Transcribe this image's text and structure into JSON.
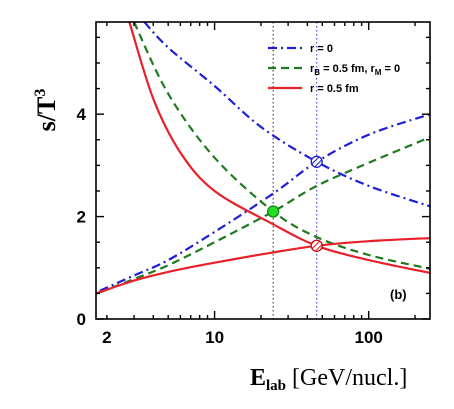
{
  "chart_data": {
    "type": "line",
    "x_scale": "log",
    "xlim": [
      1.7,
      250
    ],
    "ylim": [
      0,
      5.8
    ],
    "x_ticks": [
      "2",
      "10",
      "100"
    ],
    "y_ticks": [
      "0",
      "2",
      "4"
    ],
    "xlabel_main": "E",
    "xlabel_sub": "lab",
    "xlabel_unit": " [GeV/nucl.]",
    "ylabel_main": "s/T",
    "ylabel_sup": "3",
    "panel_label": "(b)",
    "grid": false,
    "legend_position": "top-right",
    "legend": [
      {
        "label_parts": [
          "r = 0"
        ],
        "sub": [],
        "style": "dash-dot",
        "color": "#1f1fd6"
      },
      {
        "label_parts": [
          "r",
          "B",
          " = 0.5 fm, r",
          "M",
          " = 0"
        ],
        "style": "dashed",
        "color": "#1f7a1f"
      },
      {
        "label_parts": [
          "r = 0.5 fm"
        ],
        "sub": [],
        "style": "solid",
        "color": "#e8202a"
      }
    ],
    "series": [
      {
        "style": "dash-dot",
        "color": "#1f1fd6",
        "points": [
          [
            3.5,
            5.8
          ],
          [
            5,
            5.3
          ],
          [
            10,
            4.55
          ],
          [
            20,
            3.75
          ],
          [
            46,
            3.07
          ],
          [
            100,
            2.6
          ],
          [
            250,
            2.2
          ]
        ]
      },
      {
        "style": "dash-dot",
        "color": "#1f1fd6",
        "points": [
          [
            1.8,
            0.55
          ],
          [
            3,
            0.85
          ],
          [
            5,
            1.15
          ],
          [
            10,
            1.7
          ],
          [
            24,
            2.45
          ],
          [
            46,
            3.07
          ],
          [
            100,
            3.6
          ],
          [
            250,
            4.0
          ]
        ]
      },
      {
        "style": "dashed",
        "color": "#1f7a1f",
        "points": [
          [
            3.0,
            5.8
          ],
          [
            5,
            4.4
          ],
          [
            10,
            3.15
          ],
          [
            24,
            2.1
          ],
          [
            46,
            1.6
          ],
          [
            100,
            1.25
          ],
          [
            250,
            0.98
          ]
        ]
      },
      {
        "style": "dashed",
        "color": "#1f7a1f",
        "points": [
          [
            1.8,
            0.52
          ],
          [
            3,
            0.78
          ],
          [
            5,
            1.05
          ],
          [
            10,
            1.5
          ],
          [
            24,
            2.1
          ],
          [
            46,
            2.6
          ],
          [
            100,
            3.05
          ],
          [
            250,
            3.55
          ]
        ]
      },
      {
        "style": "solid",
        "color": "#e8202a",
        "points": [
          [
            2.8,
            5.8
          ],
          [
            4,
            4.3
          ],
          [
            6,
            3.25
          ],
          [
            10,
            2.5
          ],
          [
            24,
            1.85
          ],
          [
            46,
            1.43
          ],
          [
            100,
            1.15
          ],
          [
            250,
            0.9
          ]
        ]
      },
      {
        "style": "solid",
        "color": "#e8202a",
        "points": [
          [
            1.7,
            0.5
          ],
          [
            3,
            0.75
          ],
          [
            5,
            0.92
          ],
          [
            10,
            1.1
          ],
          [
            24,
            1.3
          ],
          [
            46,
            1.43
          ],
          [
            100,
            1.52
          ],
          [
            250,
            1.58
          ]
        ]
      }
    ],
    "vlines": [
      {
        "x": 24,
        "color": "#222222"
      },
      {
        "x": 46,
        "color": "#2a2ad6"
      }
    ],
    "markers": [
      {
        "x": 46,
        "y": 3.07,
        "fill": "#1f1fd6",
        "stroke": "#1f1fd6",
        "hatched": true
      },
      {
        "x": 24,
        "y": 2.1,
        "fill": "#22dd22",
        "stroke": "#118811",
        "hatched": false
      },
      {
        "x": 46,
        "y": 1.43,
        "fill": "#e8202a",
        "stroke": "#c01010",
        "hatched": true
      }
    ]
  }
}
